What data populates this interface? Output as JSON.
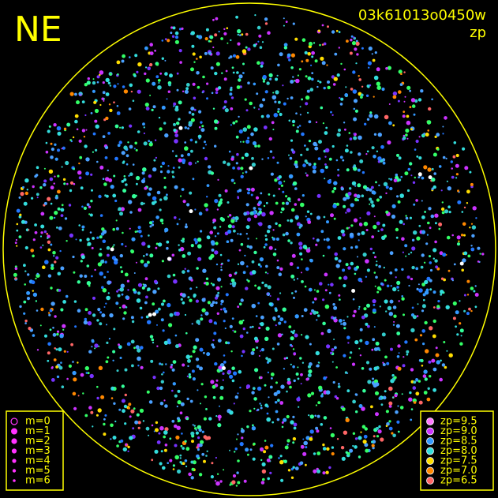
{
  "header": {
    "direction": "NE",
    "frame": "03k61013o0450w",
    "mode": "zp"
  },
  "magnitude_legend": {
    "items": [
      "m=0",
      "m=1",
      "m=2",
      "m=3",
      "m=4",
      "m=5",
      "m=6"
    ]
  },
  "zp_legend": {
    "items": [
      {
        "label": "zp=9.5",
        "color": "#ff77ff"
      },
      {
        "label": "zp=9.0",
        "color": "#cc33ff"
      },
      {
        "label": "zp=8.5",
        "color": "#3399ff"
      },
      {
        "label": "zp=8.0",
        "color": "#33dddd"
      },
      {
        "label": "zp=7.5",
        "color": "#ffdd00"
      },
      {
        "label": "zp=7.0",
        "color": "#ff8800"
      },
      {
        "label": "zp=6.5",
        "color": "#ff6666"
      }
    ]
  }
}
